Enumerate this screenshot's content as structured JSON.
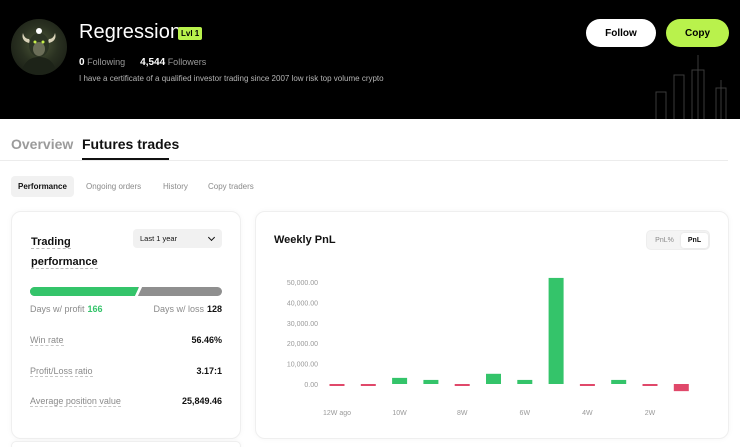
{
  "profile": {
    "name": "Regression",
    "level": "Lvl 1",
    "following_count": "0",
    "following_label": "Following",
    "followers_count": "4,544",
    "followers_label": "Followers",
    "bio": "I have a certificate of a qualified investor trading since 2007 low risk top volume crypto",
    "follow_label": "Follow",
    "copy_label": "Copy"
  },
  "tabs": [
    "Overview",
    "Futures trades"
  ],
  "subtabs": [
    "Performance",
    "Ongoing orders",
    "History",
    "Copy traders"
  ],
  "performance": {
    "title": "Trading performance",
    "period": "Last 1 year",
    "profit_ratio": 0.565,
    "days_profit_label": "Days w/ profit",
    "days_profit": "166",
    "days_loss_label": "Days w/ loss",
    "days_loss": "128",
    "rows": [
      {
        "label": "Win rate",
        "value": "56.46%"
      },
      {
        "label": "Profit/Loss ratio",
        "value": "3.17:1"
      },
      {
        "label": "Average position value",
        "value": "25,849.46"
      }
    ]
  },
  "weekly": {
    "title": "Weekly PnL",
    "toggle": [
      "PnL%",
      "PnL"
    ],
    "active_toggle": "PnL"
  },
  "colors": {
    "accent": "#b9f24c",
    "profit": "#34c46a",
    "loss": "#e0486a"
  },
  "chart_data": {
    "type": "bar",
    "categories": [
      "12W ago",
      "11W",
      "10W",
      "9W",
      "8W",
      "7W",
      "6W",
      "5W",
      "4W",
      "3W",
      "2W",
      "1W"
    ],
    "values": [
      -400,
      -700,
      3000,
      2000,
      -600,
      5000,
      2000,
      52000,
      -300,
      2000,
      -500,
      -3500
    ],
    "x_tick_labels": [
      "12W ago",
      "10W",
      "8W",
      "6W",
      "4W",
      "2W"
    ],
    "y_ticks": [
      "50,000.00",
      "40,000.00",
      "30,000.00",
      "20,000.00",
      "10,000.00",
      "0.00"
    ],
    "y_tick_values": [
      50000,
      40000,
      30000,
      20000,
      10000,
      0
    ],
    "ylim": [
      -5000,
      55000
    ],
    "grid": false
  }
}
